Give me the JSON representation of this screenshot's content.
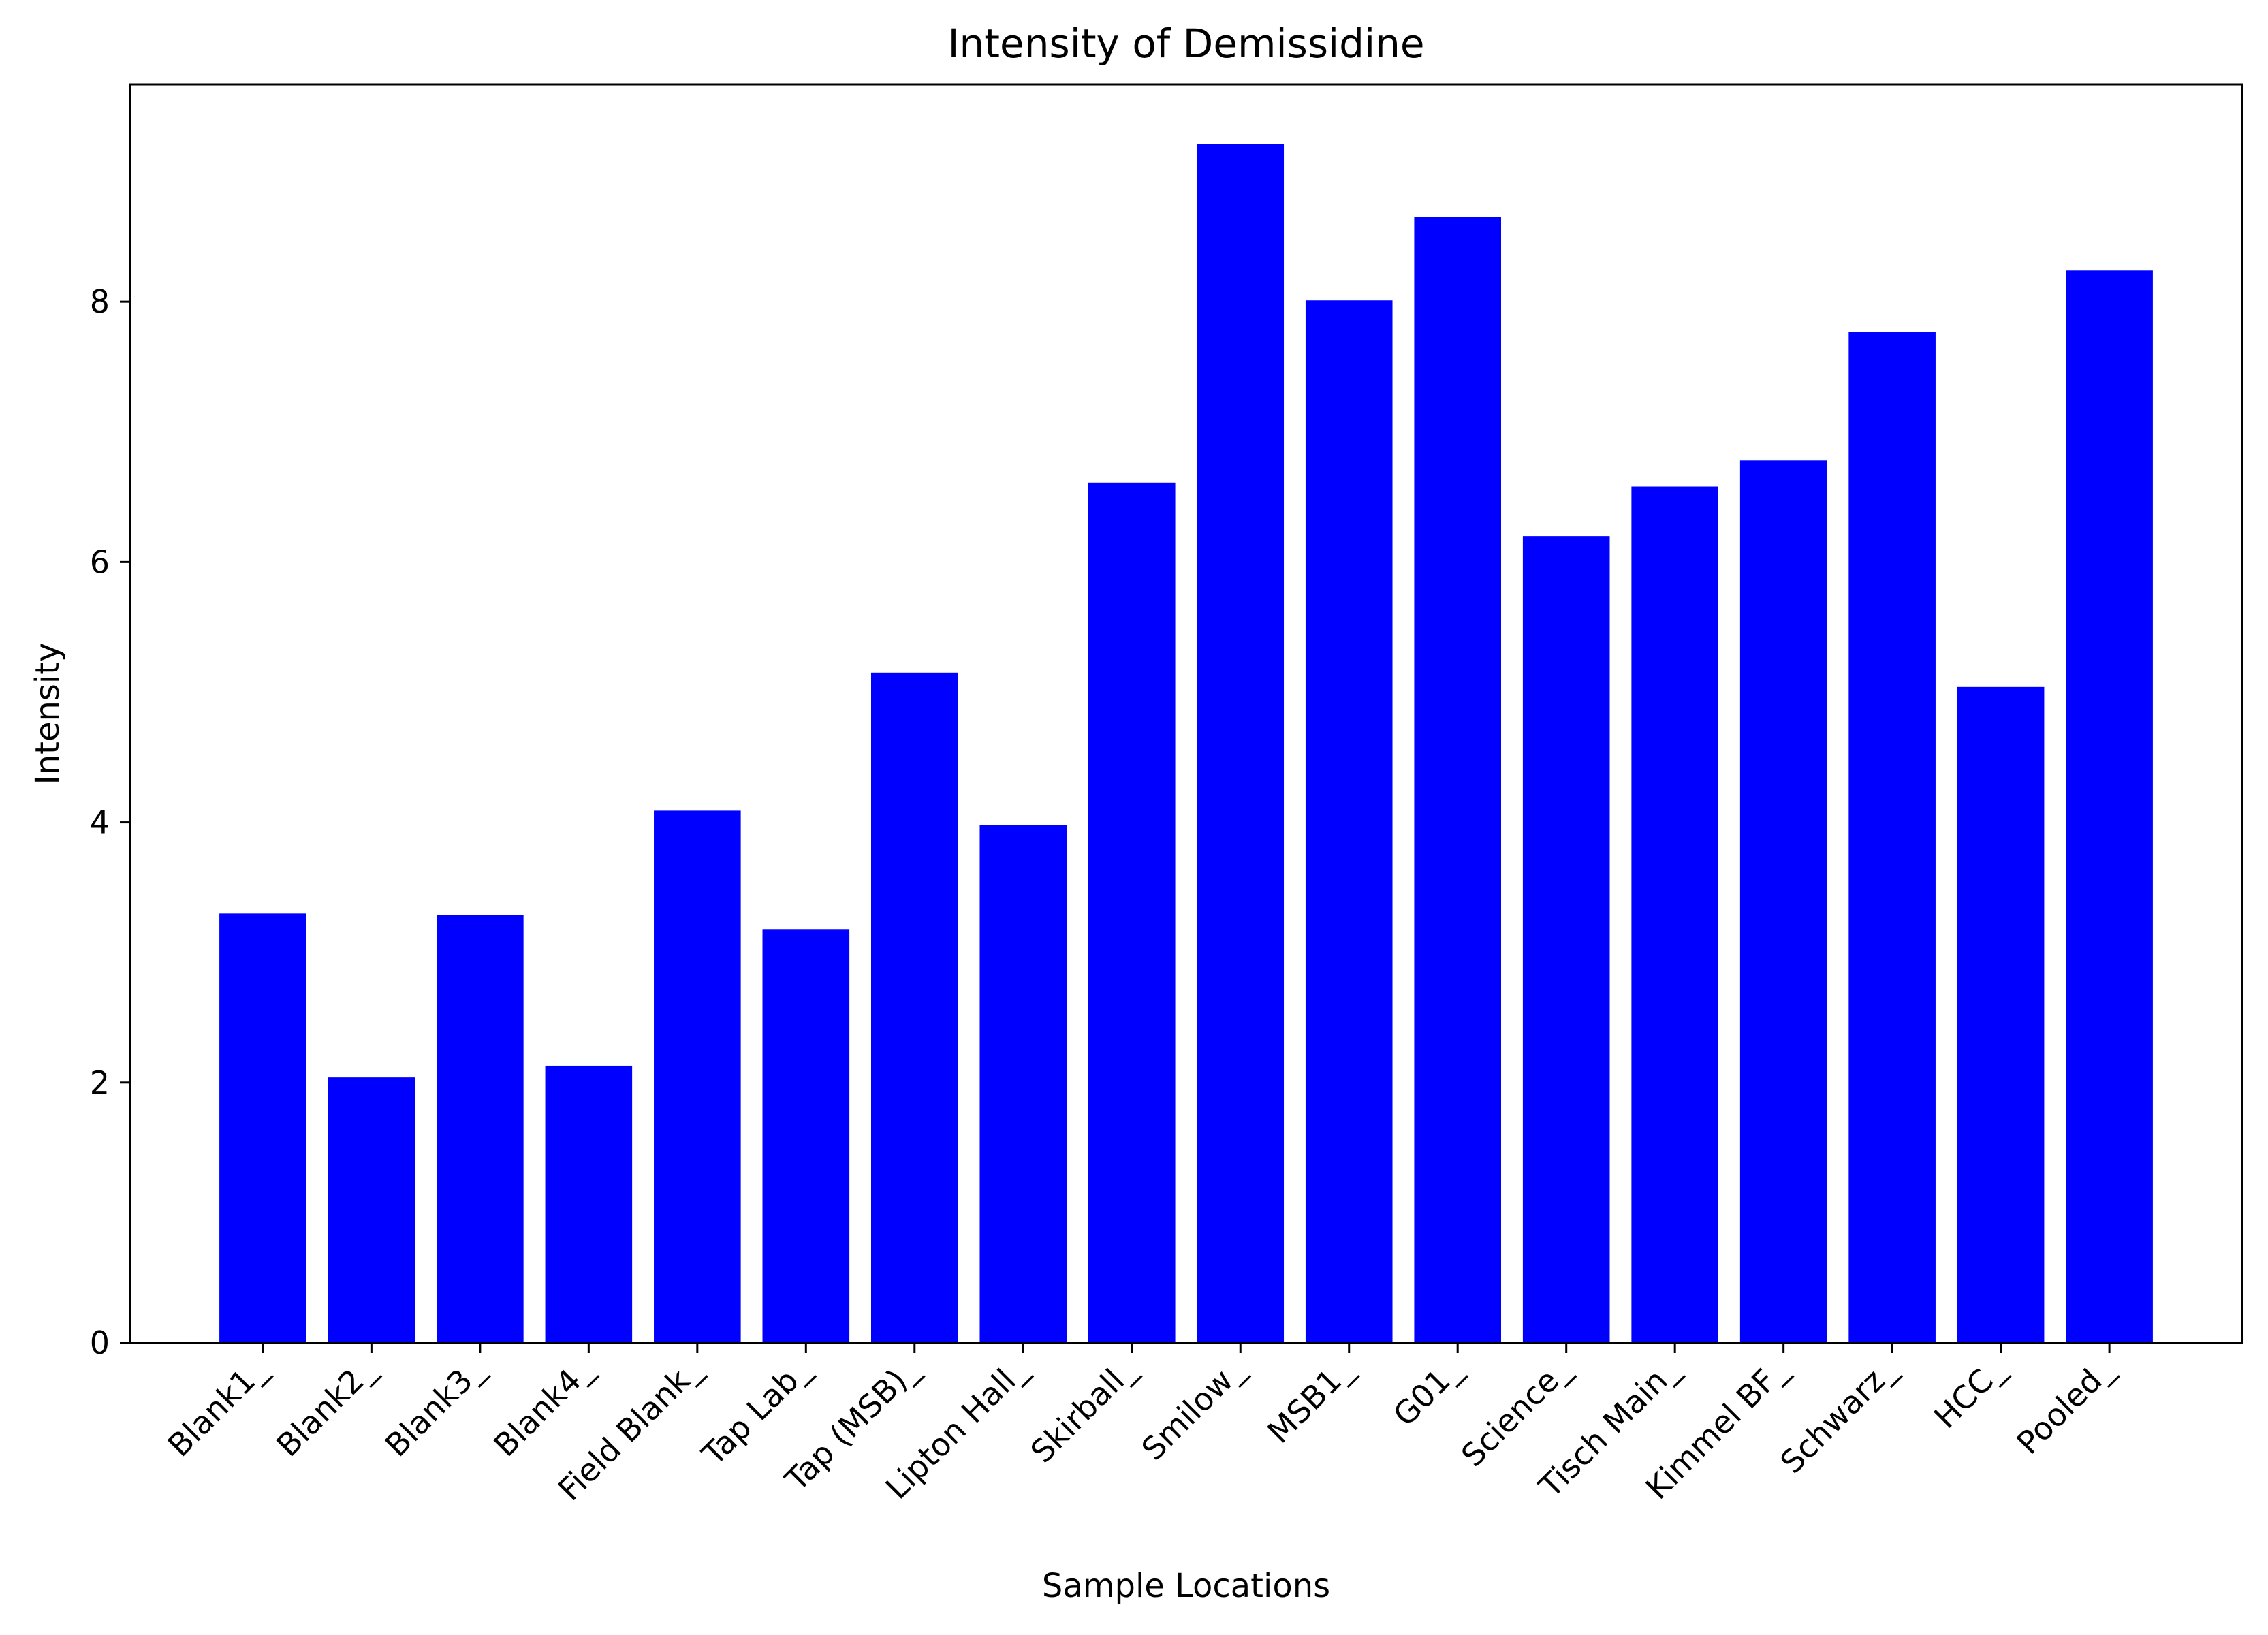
{
  "chart_data": {
    "type": "bar",
    "title": "Intensity of Demissidine",
    "xlabel": "Sample Locations",
    "ylabel": "Intensity",
    "categories": [
      "Blank1_",
      "Blank2_",
      "Blank3_",
      "Blank4_",
      "Field Blank_",
      "Tap Lab_",
      "Tap (MSB)_",
      "Lipton Hall_",
      "Skirball_",
      "Smilow_",
      "MSB1_",
      "G01_",
      "Science_",
      "Tisch Main_",
      "Kimmel BF_",
      "Schwarz_",
      "HCC_",
      "Pooled_"
    ],
    "values": [
      3.3,
      2.04,
      3.29,
      2.13,
      4.09,
      3.18,
      5.15,
      3.98,
      6.61,
      9.21,
      8.01,
      8.65,
      6.2,
      6.58,
      6.78,
      7.77,
      5.04,
      8.24
    ],
    "yticks": [
      0,
      2,
      4,
      6,
      8
    ],
    "ylim": [
      0,
      9.67
    ],
    "bar_color": "#0000ff",
    "grid": false,
    "legend": "none"
  }
}
